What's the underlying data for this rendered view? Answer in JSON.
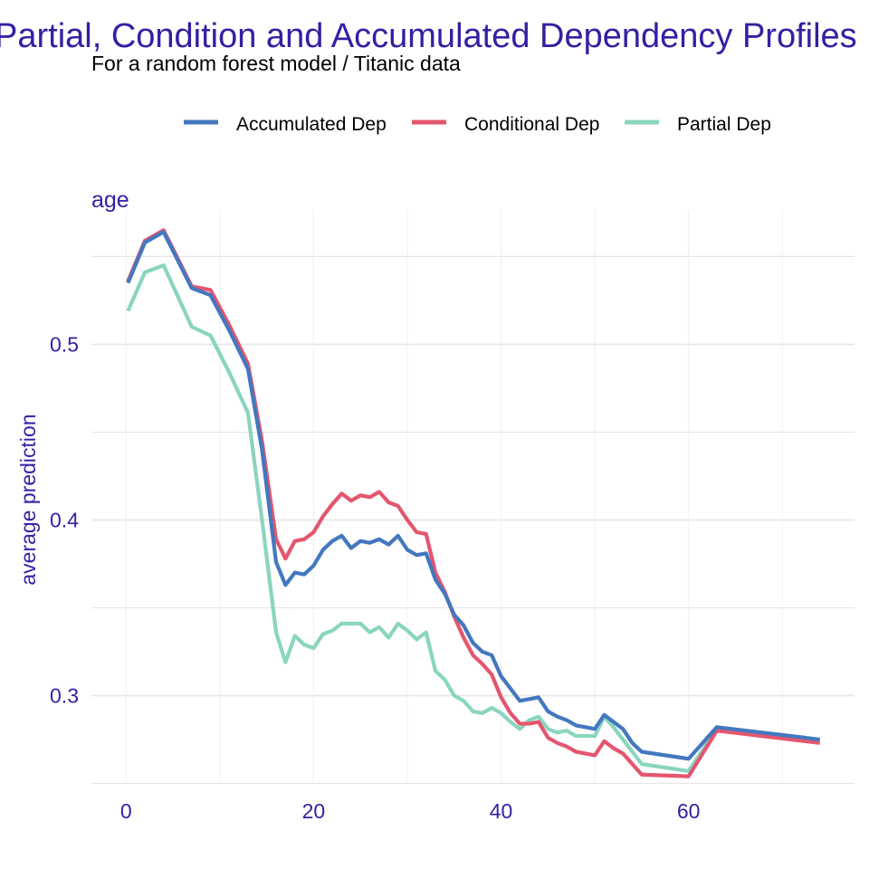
{
  "chart_data": {
    "type": "line",
    "title": "Partial, Condition and Accumulated Dependency Profiles",
    "subtitle": "For a random forest model / Titanic data",
    "panel_label": "age",
    "xlabel": "",
    "ylabel": "average prediction",
    "xlim": [
      -3.7,
      77.7
    ],
    "ylim": [
      0.2497,
      0.5765
    ],
    "x_ticks": [
      0,
      20,
      40,
      60
    ],
    "y_ticks": [
      0.3,
      0.4,
      0.5
    ],
    "x_tick_labels": [
      "0",
      "20",
      "40",
      "60"
    ],
    "y_tick_labels": [
      "0.3",
      "0.4",
      "0.5"
    ],
    "grid": true,
    "legend_position": "top",
    "series": [
      {
        "name": "Accumulated Dep",
        "color": "#4378bf",
        "points": [
          [
            0.2,
            0.535
          ],
          [
            2,
            0.558
          ],
          [
            4,
            0.564
          ],
          [
            7,
            0.532
          ],
          [
            9,
            0.528
          ],
          [
            11,
            0.508
          ],
          [
            13,
            0.486
          ],
          [
            14.5,
            0.44
          ],
          [
            16,
            0.376
          ],
          [
            17,
            0.363
          ],
          [
            18,
            0.37
          ],
          [
            19,
            0.369
          ],
          [
            20,
            0.374
          ],
          [
            21,
            0.383
          ],
          [
            22,
            0.388
          ],
          [
            23,
            0.391
          ],
          [
            24,
            0.384
          ],
          [
            25,
            0.388
          ],
          [
            26,
            0.387
          ],
          [
            27,
            0.389
          ],
          [
            28,
            0.386
          ],
          [
            29,
            0.391
          ],
          [
            30,
            0.383
          ],
          [
            31,
            0.38
          ],
          [
            32,
            0.381
          ],
          [
            33,
            0.366
          ],
          [
            34,
            0.358
          ],
          [
            35,
            0.346
          ],
          [
            36,
            0.34
          ],
          [
            37,
            0.33
          ],
          [
            38,
            0.325
          ],
          [
            39,
            0.323
          ],
          [
            40,
            0.311
          ],
          [
            41,
            0.304
          ],
          [
            42,
            0.297
          ],
          [
            43,
            0.298
          ],
          [
            44,
            0.299
          ],
          [
            45,
            0.291
          ],
          [
            46,
            0.288
          ],
          [
            47,
            0.286
          ],
          [
            48,
            0.283
          ],
          [
            49,
            0.282
          ],
          [
            50,
            0.281
          ],
          [
            51,
            0.289
          ],
          [
            52,
            0.285
          ],
          [
            53,
            0.281
          ],
          [
            54,
            0.273
          ],
          [
            55,
            0.268
          ],
          [
            60,
            0.264
          ],
          [
            63,
            0.282
          ],
          [
            74,
            0.275
          ]
        ]
      },
      {
        "name": "Conditional Dep",
        "color": "#e4566e",
        "points": [
          [
            0.2,
            0.536
          ],
          [
            2,
            0.559
          ],
          [
            4,
            0.565
          ],
          [
            7,
            0.533
          ],
          [
            9,
            0.531
          ],
          [
            11,
            0.511
          ],
          [
            13,
            0.489
          ],
          [
            14.5,
            0.445
          ],
          [
            16,
            0.389
          ],
          [
            17,
            0.378
          ],
          [
            18,
            0.388
          ],
          [
            19,
            0.389
          ],
          [
            20,
            0.393
          ],
          [
            21,
            0.402
          ],
          [
            22,
            0.409
          ],
          [
            23,
            0.415
          ],
          [
            24,
            0.411
          ],
          [
            25,
            0.414
          ],
          [
            26,
            0.413
          ],
          [
            27,
            0.416
          ],
          [
            28,
            0.41
          ],
          [
            29,
            0.408
          ],
          [
            30,
            0.4
          ],
          [
            31,
            0.393
          ],
          [
            32,
            0.392
          ],
          [
            33,
            0.37
          ],
          [
            34,
            0.359
          ],
          [
            35,
            0.345
          ],
          [
            36,
            0.333
          ],
          [
            37,
            0.323
          ],
          [
            38,
            0.318
          ],
          [
            39,
            0.312
          ],
          [
            40,
            0.299
          ],
          [
            41,
            0.29
          ],
          [
            42,
            0.284
          ],
          [
            43,
            0.284
          ],
          [
            44,
            0.285
          ],
          [
            45,
            0.276
          ],
          [
            46,
            0.273
          ],
          [
            47,
            0.271
          ],
          [
            48,
            0.268
          ],
          [
            49,
            0.267
          ],
          [
            50,
            0.266
          ],
          [
            51,
            0.274
          ],
          [
            52,
            0.27
          ],
          [
            53,
            0.267
          ],
          [
            54,
            0.261
          ],
          [
            55,
            0.255
          ],
          [
            60,
            0.254
          ],
          [
            63,
            0.28
          ],
          [
            74,
            0.273
          ]
        ]
      },
      {
        "name": "Partial Dep",
        "color": "#8ad5bf",
        "points": [
          [
            0.2,
            0.519
          ],
          [
            2,
            0.541
          ],
          [
            4,
            0.545
          ],
          [
            7,
            0.51
          ],
          [
            9,
            0.505
          ],
          [
            11,
            0.484
          ],
          [
            13,
            0.461
          ],
          [
            14.5,
            0.4
          ],
          [
            16,
            0.336
          ],
          [
            17,
            0.319
          ],
          [
            18,
            0.334
          ],
          [
            19,
            0.329
          ],
          [
            20,
            0.327
          ],
          [
            21,
            0.335
          ],
          [
            22,
            0.337
          ],
          [
            23,
            0.341
          ],
          [
            24,
            0.341
          ],
          [
            25,
            0.341
          ],
          [
            26,
            0.336
          ],
          [
            27,
            0.339
          ],
          [
            28,
            0.333
          ],
          [
            29,
            0.341
          ],
          [
            30,
            0.337
          ],
          [
            31,
            0.332
          ],
          [
            32,
            0.336
          ],
          [
            33,
            0.314
          ],
          [
            34,
            0.309
          ],
          [
            35,
            0.3
          ],
          [
            36,
            0.297
          ],
          [
            37,
            0.291
          ],
          [
            38,
            0.29
          ],
          [
            39,
            0.293
          ],
          [
            40,
            0.29
          ],
          [
            41,
            0.285
          ],
          [
            42,
            0.281
          ],
          [
            43,
            0.286
          ],
          [
            44,
            0.288
          ],
          [
            45,
            0.281
          ],
          [
            46,
            0.279
          ],
          [
            47,
            0.28
          ],
          [
            48,
            0.277
          ],
          [
            49,
            0.277
          ],
          [
            50,
            0.277
          ],
          [
            51,
            0.288
          ],
          [
            52,
            0.282
          ],
          [
            53,
            0.275
          ],
          [
            54,
            0.268
          ],
          [
            55,
            0.261
          ],
          [
            60,
            0.257
          ],
          [
            63,
            0.281
          ],
          [
            74,
            0.274
          ]
        ]
      }
    ]
  }
}
